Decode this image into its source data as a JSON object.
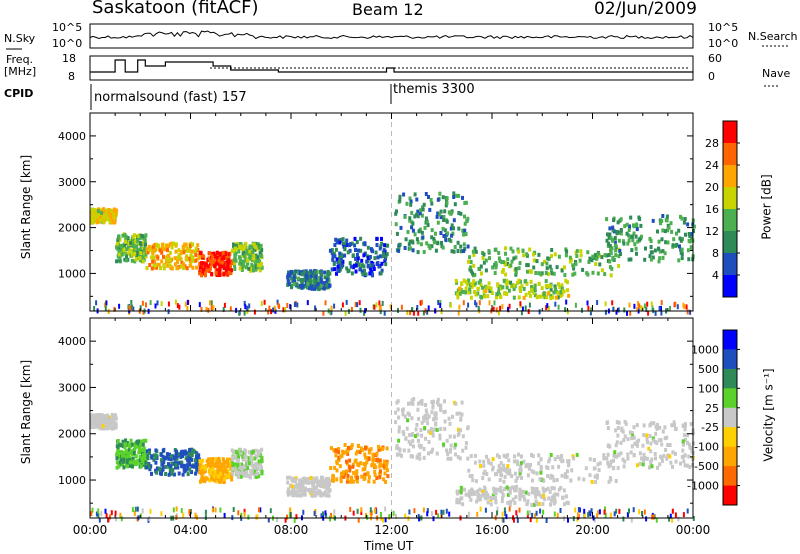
{
  "header": {
    "site": "Saskatoon (fitACF)",
    "beam": "Beam 12",
    "date": "02/Jun/2009"
  },
  "nsky_panel": {
    "left_label": "N.Sky",
    "left_ticks": [
      "10^5",
      "10^0"
    ],
    "right_label": "N.Search",
    "right_ticks": [
      "10^5",
      "10^0"
    ]
  },
  "freq_panel": {
    "left_label_1": "Freq.",
    "left_label_2": "[MHz]",
    "left_ticks": [
      "18",
      "8"
    ],
    "right_label": "Nave",
    "right_ticks": [
      "60",
      "0"
    ]
  },
  "cpid": {
    "label": "CPID",
    "programs": [
      "normalsound (fast) 157",
      "themis 3300"
    ]
  },
  "colors": {
    "power_scale": [
      "#0000ff",
      "#1f4fbf",
      "#2e8b57",
      "#4caf50",
      "#c8d400",
      "#ffa500",
      "#ff6400",
      "#ff0000"
    ],
    "velocity_scale": [
      "#ff0000",
      "#ff6a00",
      "#ffa500",
      "#ffd000",
      "#c8c8c8",
      "#5ad22a",
      "#2e8b57",
      "#1f4fbf",
      "#0000ff"
    ],
    "ground_scatter": "#c8c8c8"
  },
  "chart_data": [
    {
      "type": "heatmap",
      "panel": "power",
      "ylabel": "Slant Range [km]",
      "ylim": [
        180,
        4500
      ],
      "yticks": [
        "1000",
        "2000",
        "3000",
        "4000"
      ],
      "xlim": [
        0,
        24
      ],
      "xticks": [
        "00:00",
        "04:00",
        "08:00",
        "12:00",
        "16:00",
        "20:00",
        "00:00"
      ],
      "colorbar": {
        "label": "Power [dB]",
        "ticks": [
          "28",
          "24",
          "20",
          "16",
          "12",
          "8",
          "4"
        ],
        "range": [
          0,
          30
        ]
      },
      "bands": [
        {
          "t0": 0.0,
          "t1": 1.0,
          "r0": 2150,
          "r1": 2450,
          "value": 18
        },
        {
          "t0": 1.0,
          "t1": 2.2,
          "r0": 1300,
          "r1": 1900,
          "value": 14
        },
        {
          "t0": 2.2,
          "t1": 4.3,
          "r0": 1150,
          "r1": 1700,
          "value": 20
        },
        {
          "t0": 4.3,
          "t1": 5.6,
          "r0": 1000,
          "r1": 1500,
          "value": 27
        },
        {
          "t0": 5.6,
          "t1": 6.8,
          "r0": 1100,
          "r1": 1700,
          "value": 14
        },
        {
          "t0": 7.8,
          "t1": 9.5,
          "r0": 700,
          "r1": 1100,
          "value": 8
        },
        {
          "t0": 9.5,
          "t1": 11.8,
          "r0": 1000,
          "r1": 1800,
          "value": 6
        },
        {
          "t0": 12.1,
          "t1": 15.0,
          "r0": 1500,
          "r1": 2800,
          "value": 10
        },
        {
          "t0": 15.0,
          "t1": 21.0,
          "r0": 1000,
          "r1": 1600,
          "value": 13
        },
        {
          "t0": 14.5,
          "t1": 19.0,
          "r0": 500,
          "r1": 900,
          "value": 15
        },
        {
          "t0": 20.5,
          "t1": 24.0,
          "r0": 1300,
          "r1": 2300,
          "value": 11
        }
      ]
    },
    {
      "type": "heatmap",
      "panel": "velocity",
      "ylabel": "Slant Range [km]",
      "ylim": [
        180,
        4500
      ],
      "yticks": [
        "1000",
        "2000",
        "3000",
        "4000"
      ],
      "xlim": [
        0,
        24
      ],
      "xticks": [
        "00:00",
        "04:00",
        "08:00",
        "12:00",
        "16:00",
        "20:00",
        "00:00"
      ],
      "xlabel": "Time UT",
      "colorbar": {
        "label": "Velocity [m s⁻¹]",
        "ticks": [
          "1000",
          "500",
          "100",
          "25",
          "-25",
          "-100",
          "-500",
          "-1000"
        ],
        "range": [
          -1000,
          1000
        ]
      },
      "bands": [
        {
          "t0": 0.0,
          "t1": 1.0,
          "r0": 2150,
          "r1": 2450,
          "value": 0
        },
        {
          "t0": 1.0,
          "t1": 2.2,
          "r0": 1300,
          "r1": 1900,
          "value": 300
        },
        {
          "t0": 2.2,
          "t1": 4.3,
          "r0": 1150,
          "r1": 1700,
          "value": 600
        },
        {
          "t0": 4.3,
          "t1": 5.6,
          "r0": 1000,
          "r1": 1500,
          "value": -400
        },
        {
          "t0": 5.6,
          "t1": 6.8,
          "r0": 1100,
          "r1": 1700,
          "value": 80
        },
        {
          "t0": 7.8,
          "t1": 9.5,
          "r0": 700,
          "r1": 1100,
          "value": 0
        },
        {
          "t0": 9.5,
          "t1": 11.8,
          "r0": 1000,
          "r1": 1800,
          "value": -500
        },
        {
          "t0": 12.1,
          "t1": 15.0,
          "r0": 1500,
          "r1": 2800,
          "value": 0
        },
        {
          "t0": 15.0,
          "t1": 21.0,
          "r0": 1000,
          "r1": 1600,
          "value": 0
        },
        {
          "t0": 14.5,
          "t1": 19.0,
          "r0": 500,
          "r1": 900,
          "value": 0
        },
        {
          "t0": 20.5,
          "t1": 24.0,
          "r0": 1300,
          "r1": 2300,
          "value": 0
        }
      ]
    }
  ]
}
